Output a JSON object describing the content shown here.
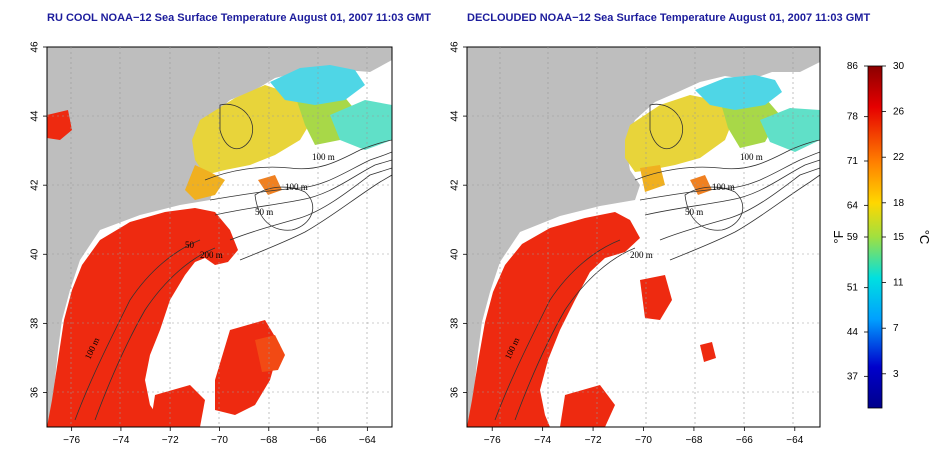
{
  "panels": [
    {
      "title": "RU COOL NOAA−12 Sea Surface Temperature August 01, 2007 11:03 GMT",
      "contour_labels": [
        "100 m",
        "100 m",
        "50 m",
        "200 m",
        "50",
        "100 m"
      ]
    },
    {
      "title": "DECLOUDED NOAA−12 Sea Surface Temperature August 01, 2007 11:03 GMT",
      "contour_labels": [
        "100 m",
        "100 m",
        "50 m",
        "200 m",
        "100 m"
      ]
    }
  ],
  "axes": {
    "x_ticks": [
      "−76",
      "−74",
      "−72",
      "−70",
      "−68",
      "−66",
      "−64"
    ],
    "y_ticks": [
      "46",
      "44",
      "42",
      "40",
      "38",
      "36"
    ],
    "x_range": [
      -77,
      -63
    ],
    "y_range": [
      35,
      46
    ]
  },
  "colorbar": {
    "fahrenheit_ticks": [
      "86",
      "78",
      "71",
      "64",
      "59",
      "51",
      "44",
      "37"
    ],
    "celsius_ticks": [
      "30",
      "26",
      "22",
      "18",
      "15",
      "11",
      "7",
      "3"
    ],
    "fahrenheit_unit": "°F",
    "celsius_unit": "°C",
    "colors": [
      "#8b0000",
      "#e60000",
      "#ff7f00",
      "#ffd700",
      "#a0e040",
      "#00e0e0",
      "#00a0ff",
      "#0000cc",
      "#00008b"
    ]
  },
  "colors": {
    "land": "#bebebe",
    "ocean_missing": "#ffffff",
    "warm": "#ee2a10",
    "cool": "#4fd6e6",
    "title": "#1c1c9c"
  }
}
